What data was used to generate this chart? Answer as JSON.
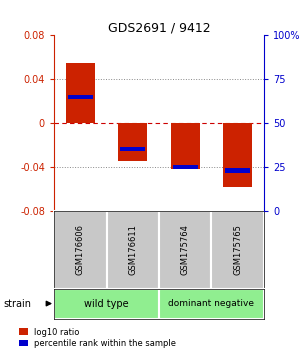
{
  "title": "GDS2691 / 9412",
  "samples": [
    "GSM176606",
    "GSM176611",
    "GSM175764",
    "GSM175765"
  ],
  "log10_ratios": [
    0.055,
    -0.035,
    -0.042,
    -0.058
  ],
  "percentile_ranks": [
    65,
    35,
    25,
    23
  ],
  "left_ylim": [
    -0.08,
    0.08
  ],
  "left_yticks": [
    -0.08,
    -0.04,
    0,
    0.04,
    0.08
  ],
  "right_yticks": [
    0,
    25,
    50,
    75,
    100
  ],
  "right_ylabels": [
    "0",
    "25",
    "50",
    "75",
    "100%"
  ],
  "left_ytick_labels": [
    "-0.08",
    "-0.04",
    "0",
    "0.04",
    "0.08"
  ],
  "bar_color": "#CC2200",
  "blue_color": "#0000CC",
  "zero_line_color": "#CC0000",
  "dotted_line_color": "#888888",
  "bar_width": 0.55,
  "legend_red_label": "log10 ratio",
  "legend_blue_label": "percentile rank within the sample",
  "bg_label": "#C8C8C8",
  "bg_group": "#90EE90"
}
